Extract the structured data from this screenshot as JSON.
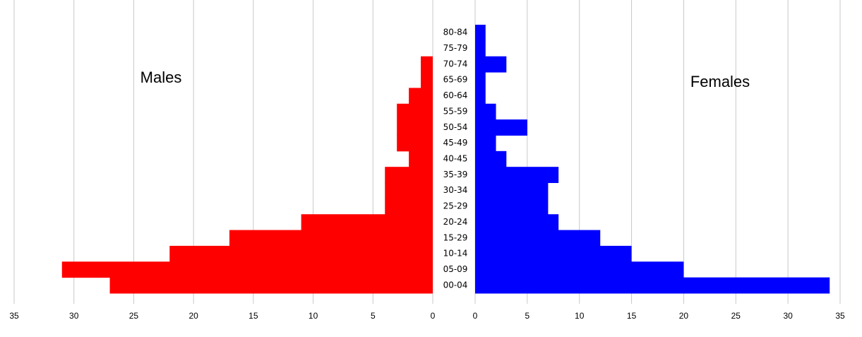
{
  "chart_data": {
    "type": "pyramid",
    "categories": [
      "00-04",
      "05-09",
      "10-14",
      "15-29",
      "20-24",
      "25-29",
      "30-34",
      "35-39",
      "40-45",
      "45-49",
      "50-54",
      "55-59",
      "60-64",
      "65-69",
      "70-74",
      "75-79",
      "80-84"
    ],
    "series": [
      {
        "name": "Males",
        "color": "#ff0000",
        "values": [
          27,
          31,
          22,
          17,
          11,
          4,
          4,
          4,
          2,
          3,
          3,
          3,
          2,
          1,
          1,
          0,
          0
        ]
      },
      {
        "name": "Females",
        "color": "#0000ff",
        "values": [
          34,
          20,
          15,
          12,
          8,
          7,
          7,
          8,
          3,
          2,
          5,
          2,
          1,
          1,
          3,
          1,
          1
        ]
      }
    ],
    "xlim": [
      0,
      35
    ],
    "xticks": [
      0,
      5,
      10,
      15,
      20,
      25,
      30,
      35
    ],
    "grid": true
  }
}
